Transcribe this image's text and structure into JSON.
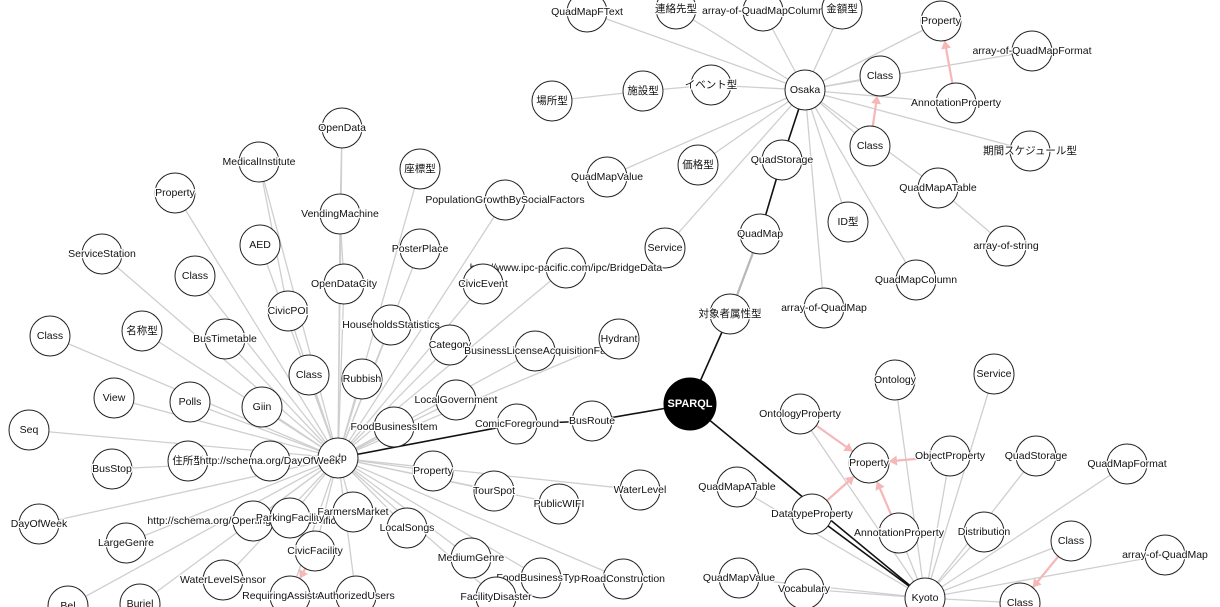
{
  "graph": {
    "root": {
      "id": "sparql",
      "label": "SPARQL"
    },
    "nodes": [
      {
        "id": "osaka",
        "label": "Osaka"
      },
      {
        "id": "odp",
        "label": "odp"
      },
      {
        "id": "kyoto",
        "label": "Kyoto"
      },
      {
        "id": "quadstorage1",
        "label": "QuadStorage"
      },
      {
        "id": "quadmap1",
        "label": "QuadMap"
      },
      {
        "id": "taisho",
        "label": "対象者属性型"
      },
      {
        "id": "busroute",
        "label": "BusRoute"
      },
      {
        "id": "comicfg",
        "label": "ComicForeground"
      },
      {
        "id": "datatypeprop2",
        "label": "DatatypeProperty"
      },
      {
        "id": "qmftext",
        "label": "QuadMapFText"
      },
      {
        "id": "renraku",
        "label": "連絡先型"
      },
      {
        "id": "aoqmcol",
        "label": "array-of-QuadMapColumn"
      },
      {
        "id": "kingaku",
        "label": "金額型"
      },
      {
        "id": "prop_o",
        "label": "Property"
      },
      {
        "id": "aoqmformat",
        "label": "array-of-QuadMapFormat"
      },
      {
        "id": "class_o1",
        "label": "Class"
      },
      {
        "id": "annprop_o",
        "label": "AnnotationProperty"
      },
      {
        "id": "class_o2",
        "label": "Class"
      },
      {
        "id": "kikan",
        "label": "期間スケジュール型"
      },
      {
        "id": "basho",
        "label": "場所型"
      },
      {
        "id": "shisetsu",
        "label": "施設型"
      },
      {
        "id": "event",
        "label": "イベント型"
      },
      {
        "id": "qmvalue_o",
        "label": "QuadMapValue"
      },
      {
        "id": "kakaku",
        "label": "価格型"
      },
      {
        "id": "qmatable_o",
        "label": "QuadMapATable"
      },
      {
        "id": "aostring",
        "label": "array-of-string"
      },
      {
        "id": "idgata",
        "label": "ID型"
      },
      {
        "id": "service_o",
        "label": "Service"
      },
      {
        "id": "qmcolumn",
        "label": "QuadMapColumn"
      },
      {
        "id": "aoqm_o",
        "label": "array-of-QuadMap"
      },
      {
        "id": "opendata",
        "label": "OpenData"
      },
      {
        "id": "medical",
        "label": "MedicalInstitute"
      },
      {
        "id": "zahyo",
        "label": "座標型"
      },
      {
        "id": "prop_l1",
        "label": "Property"
      },
      {
        "id": "vending",
        "label": "VendingMachine"
      },
      {
        "id": "popgrowth",
        "label": "PopulationGrowthBySocialFactors"
      },
      {
        "id": "aed",
        "label": "AED"
      },
      {
        "id": "posterplace",
        "label": "PosterPlace"
      },
      {
        "id": "servicestation",
        "label": "ServiceStation"
      },
      {
        "id": "class_l1",
        "label": "Class"
      },
      {
        "id": "opendatacity",
        "label": "OpenDataCity"
      },
      {
        "id": "ipcbridge",
        "label": "http://www.ipc-pacific.com/ipc/BridgeData"
      },
      {
        "id": "civicpoi",
        "label": "CivicPOI"
      },
      {
        "id": "civicevent",
        "label": "CivicEvent"
      },
      {
        "id": "class_l2",
        "label": "Class"
      },
      {
        "id": "meisho",
        "label": "名称型"
      },
      {
        "id": "bustimetable",
        "label": "BusTimetable"
      },
      {
        "id": "household",
        "label": "HouseholdsStatistics"
      },
      {
        "id": "category",
        "label": "Category"
      },
      {
        "id": "businesslicense",
        "label": "BusinessLicenseAcquisitionFa"
      },
      {
        "id": "hydrant",
        "label": "Hydrant"
      },
      {
        "id": "class_l3",
        "label": "Class"
      },
      {
        "id": "rubbish",
        "label": "Rubbish"
      },
      {
        "id": "view",
        "label": "View"
      },
      {
        "id": "polls",
        "label": "Polls"
      },
      {
        "id": "giin",
        "label": "Giin"
      },
      {
        "id": "localgov",
        "label": "LocalGovernment"
      },
      {
        "id": "seq",
        "label": "Seq"
      },
      {
        "id": "foodbizitem",
        "label": "FoodBusinessItem"
      },
      {
        "id": "busstop",
        "label": "BusStop"
      },
      {
        "id": "jusho",
        "label": "住所型"
      },
      {
        "id": "dayofweekuri",
        "label": "http://schema.org/DayOfWeek"
      },
      {
        "id": "prop_l2",
        "label": "Property"
      },
      {
        "id": "waterlevel",
        "label": "WaterLevel"
      },
      {
        "id": "tourspot",
        "label": "TourSpot"
      },
      {
        "id": "publicwifi",
        "label": "PublicWIFI"
      },
      {
        "id": "dayofweek",
        "label": "DayOfWeek"
      },
      {
        "id": "openinghours",
        "label": "http://schema.org/OpeningHoursSpecification"
      },
      {
        "id": "parkingfac",
        "label": "ParkingFacility"
      },
      {
        "id": "farmers",
        "label": "FarmersMarket"
      },
      {
        "id": "largegenre",
        "label": "LargeGenre"
      },
      {
        "id": "localsongs",
        "label": "LocalSongs"
      },
      {
        "id": "civicfacility",
        "label": "CivicFacility"
      },
      {
        "id": "mediumgenre",
        "label": "MediumGenre"
      },
      {
        "id": "waterlevelsensor",
        "label": "WaterLevelSensor"
      },
      {
        "id": "foodbiztype",
        "label": "FoodBusinessType"
      },
      {
        "id": "roadcon",
        "label": "RoadConstruction"
      },
      {
        "id": "requiring",
        "label": "RequiringAssistance"
      },
      {
        "id": "authorized",
        "label": "AuthorizedUsers"
      },
      {
        "id": "facdisaster",
        "label": "FacilityDisaster"
      },
      {
        "id": "partial1",
        "label": "Buriel"
      },
      {
        "id": "partial2",
        "label": "Bel"
      },
      {
        "id": "ontology",
        "label": "Ontology"
      },
      {
        "id": "service_k",
        "label": "Service"
      },
      {
        "id": "ontprop",
        "label": "OntologyProperty"
      },
      {
        "id": "prop_k",
        "label": "Property"
      },
      {
        "id": "objprop",
        "label": "ObjectProperty"
      },
      {
        "id": "qstorage_k",
        "label": "QuadStorage"
      },
      {
        "id": "qmformat_k",
        "label": "QuadMapFormat"
      },
      {
        "id": "qmatable_k",
        "label": "QuadMapATable"
      },
      {
        "id": "annprop_k",
        "label": "AnnotationProperty"
      },
      {
        "id": "distribution",
        "label": "Distribution"
      },
      {
        "id": "class_k1",
        "label": "Class"
      },
      {
        "id": "aoqm_k",
        "label": "array-of-QuadMap"
      },
      {
        "id": "qmvalue_k",
        "label": "QuadMapValue"
      },
      {
        "id": "vocabulary",
        "label": "Vocabulary"
      },
      {
        "id": "class_k2",
        "label": "Class"
      }
    ],
    "edges": [
      [
        "sparql",
        "taisho",
        "hub"
      ],
      [
        "taisho",
        "quadmap1",
        "hub"
      ],
      [
        "quadmap1",
        "quadstorage1",
        "hub"
      ],
      [
        "quadstorage1",
        "osaka",
        "hub"
      ],
      [
        "sparql",
        "busroute",
        "hub"
      ],
      [
        "busroute",
        "comicfg",
        "hub"
      ],
      [
        "comicfg",
        "odp",
        "hub"
      ],
      [
        "sparql",
        "kyoto",
        "hub"
      ],
      [
        "datatypeprop2",
        "kyoto",
        "hub"
      ],
      [
        "osaka",
        "qmftext"
      ],
      [
        "osaka",
        "renraku"
      ],
      [
        "osaka",
        "aoqmcol"
      ],
      [
        "osaka",
        "kingaku"
      ],
      [
        "osaka",
        "prop_o"
      ],
      [
        "osaka",
        "aoqmformat"
      ],
      [
        "osaka",
        "class_o1"
      ],
      [
        "osaka",
        "annprop_o"
      ],
      [
        "osaka",
        "class_o2"
      ],
      [
        "osaka",
        "kikan"
      ],
      [
        "osaka",
        "event"
      ],
      [
        "event",
        "shisetsu"
      ],
      [
        "shisetsu",
        "basho"
      ],
      [
        "osaka",
        "qmvalue_o"
      ],
      [
        "osaka",
        "kakaku"
      ],
      [
        "osaka",
        "qmatable_o"
      ],
      [
        "qmatable_o",
        "aostring"
      ],
      [
        "osaka",
        "idgata"
      ],
      [
        "osaka",
        "service_o"
      ],
      [
        "osaka",
        "qmcolumn"
      ],
      [
        "osaka",
        "aoqm_o"
      ],
      [
        "quadmap1",
        "taisho",
        "sub"
      ],
      [
        "annprop_o",
        "prop_o",
        "pink"
      ],
      [
        "class_o2",
        "class_o1",
        "pink"
      ],
      [
        "odp",
        "opendata"
      ],
      [
        "odp",
        "medical"
      ],
      [
        "odp",
        "zahyo"
      ],
      [
        "odp",
        "prop_l1"
      ],
      [
        "odp",
        "vending"
      ],
      [
        "odp",
        "popgrowth"
      ],
      [
        "odp",
        "aed"
      ],
      [
        "odp",
        "posterplace"
      ],
      [
        "odp",
        "servicestation"
      ],
      [
        "odp",
        "class_l1"
      ],
      [
        "odp",
        "opendatacity"
      ],
      [
        "odp",
        "ipcbridge"
      ],
      [
        "odp",
        "civicpoi"
      ],
      [
        "odp",
        "civicevent"
      ],
      [
        "odp",
        "class_l2"
      ],
      [
        "odp",
        "meisho"
      ],
      [
        "odp",
        "bustimetable"
      ],
      [
        "odp",
        "household"
      ],
      [
        "odp",
        "category"
      ],
      [
        "odp",
        "businesslicense"
      ],
      [
        "odp",
        "hydrant"
      ],
      [
        "odp",
        "class_l3"
      ],
      [
        "odp",
        "rubbish"
      ],
      [
        "odp",
        "view"
      ],
      [
        "odp",
        "polls"
      ],
      [
        "odp",
        "giin"
      ],
      [
        "odp",
        "localgov"
      ],
      [
        "odp",
        "seq"
      ],
      [
        "odp",
        "foodbizitem"
      ],
      [
        "odp",
        "busstop"
      ],
      [
        "odp",
        "jusho"
      ],
      [
        "odp",
        "dayofweekuri"
      ],
      [
        "odp",
        "prop_l2"
      ],
      [
        "odp",
        "waterlevel"
      ],
      [
        "odp",
        "tourspot"
      ],
      [
        "odp",
        "publicwifi"
      ],
      [
        "odp",
        "dayofweek"
      ],
      [
        "odp",
        "openinghours"
      ],
      [
        "odp",
        "parkingfac"
      ],
      [
        "odp",
        "farmers"
      ],
      [
        "odp",
        "largegenre"
      ],
      [
        "odp",
        "localsongs"
      ],
      [
        "odp",
        "civicfacility"
      ],
      [
        "odp",
        "mediumgenre"
      ],
      [
        "odp",
        "waterlevelsensor"
      ],
      [
        "odp",
        "foodbiztype"
      ],
      [
        "odp",
        "roadcon"
      ],
      [
        "odp",
        "requiring"
      ],
      [
        "odp",
        "authorized"
      ],
      [
        "odp",
        "facdisaster"
      ],
      [
        "odp",
        "partial1"
      ],
      [
        "odp",
        "partial2"
      ],
      [
        "opendata",
        "vending"
      ],
      [
        "vending",
        "opendatacity"
      ],
      [
        "medical",
        "civicpoi"
      ],
      [
        "civicfacility",
        "requiring",
        "pink"
      ],
      [
        "kyoto",
        "ontology"
      ],
      [
        "kyoto",
        "service_k"
      ],
      [
        "kyoto",
        "ontprop"
      ],
      [
        "kyoto",
        "objprop"
      ],
      [
        "kyoto",
        "qstorage_k"
      ],
      [
        "kyoto",
        "qmformat_k"
      ],
      [
        "kyoto",
        "qmatable_k"
      ],
      [
        "kyoto",
        "annprop_k"
      ],
      [
        "kyoto",
        "distribution"
      ],
      [
        "kyoto",
        "class_k1"
      ],
      [
        "kyoto",
        "aoqm_k"
      ],
      [
        "kyoto",
        "qmvalue_k"
      ],
      [
        "kyoto",
        "vocabulary"
      ],
      [
        "kyoto",
        "class_k2"
      ],
      [
        "ontprop",
        "prop_k",
        "pink"
      ],
      [
        "objprop",
        "prop_k",
        "pink"
      ],
      [
        "datatypeprop2",
        "prop_k",
        "pink"
      ],
      [
        "annprop_k",
        "prop_k",
        "pink"
      ],
      [
        "class_k1",
        "class_k2",
        "pink"
      ]
    ]
  }
}
